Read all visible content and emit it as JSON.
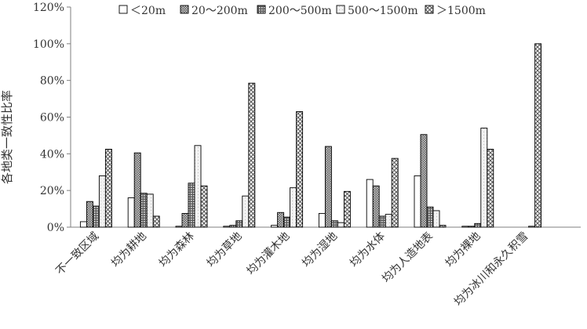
{
  "chart_data": {
    "type": "bar",
    "title": "",
    "xlabel": "",
    "ylabel": "各地类一致性比率",
    "ylim": [
      0,
      120
    ],
    "yticks": [
      "0%",
      "20%",
      "40%",
      "60%",
      "80%",
      "100%",
      "120%"
    ],
    "grid": false,
    "legend_position": "top",
    "categories": [
      "不一致区域",
      "均为耕地",
      "均为森林",
      "均为草地",
      "均为灌木地",
      "均为湿地",
      "均为水体",
      "均为人造地表",
      "均为裸地",
      "均为冰川和永久积雪"
    ],
    "series": [
      {
        "name": "＜20m",
        "pattern": "white",
        "values": [
          3,
          16,
          0.5,
          0.5,
          1,
          7.5,
          26,
          28,
          0.5,
          0
        ]
      },
      {
        "name": "20～200m",
        "pattern": "dots",
        "values": [
          14,
          40.5,
          7.5,
          1,
          8,
          44,
          22.5,
          50.5,
          0.5,
          0
        ]
      },
      {
        "name": "200～500m",
        "pattern": "grid",
        "values": [
          11.5,
          18.5,
          24,
          3.5,
          5.5,
          3.5,
          6,
          11,
          2,
          0
        ]
      },
      {
        "name": "500～1500m",
        "pattern": "light",
        "values": [
          28,
          18,
          44.5,
          17,
          21.5,
          2.5,
          7,
          9,
          54,
          0.5
        ]
      },
      {
        "name": "＞1500m",
        "pattern": "hatch",
        "values": [
          42.5,
          6,
          22.5,
          78.5,
          63,
          19.5,
          37.5,
          1,
          42.5,
          100
        ]
      }
    ]
  }
}
